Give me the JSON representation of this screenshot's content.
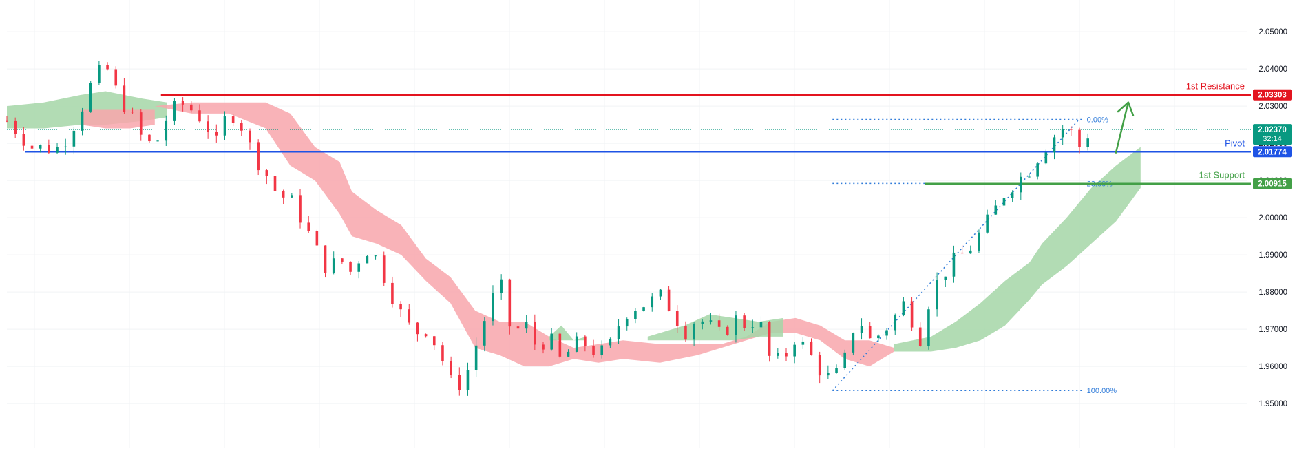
{
  "chart_data": {
    "type": "line",
    "subtype": "candlestick with ichimoku cloud",
    "title": "",
    "xlabel": "",
    "ylabel": "",
    "grid": true,
    "ylim": [
      1.9465,
      2.0515
    ],
    "y_ticks": [
      1.95,
      1.96,
      1.97,
      1.98,
      1.99,
      2.0,
      2.01,
      2.02,
      2.03,
      2.04,
      2.05
    ],
    "y_tick_labels": [
      "1.95000",
      "1.96000",
      "1.97000",
      "1.98000",
      "1.99000",
      "2.00000",
      "2.01000",
      "2.02000",
      "2.03000",
      "2.04000",
      "2.05000"
    ],
    "x_range": [
      0,
      100
    ],
    "colors": {
      "up_candle": "#089981",
      "down_candle": "#f23645",
      "cloud_bullish": "#a5d6a7",
      "cloud_bearish": "#f8a6ab",
      "resistance": "#e3141f",
      "pivot": "#1e53e5",
      "support": "#43a047",
      "fib": "#2f7bd9",
      "arrow": "#43a047",
      "grid": "#f0f3f5"
    },
    "price_series": {
      "name": "",
      "x": [
        0,
        2,
        4,
        5,
        6,
        7,
        8,
        9,
        10,
        11,
        12,
        13,
        14,
        15,
        16,
        17,
        18,
        19,
        20,
        21,
        22,
        23,
        24,
        25,
        26,
        27,
        28,
        29,
        30,
        31,
        32,
        33,
        34,
        35,
        36,
        37,
        38,
        39,
        40,
        41,
        42,
        43,
        44,
        45,
        46,
        47,
        48,
        49,
        50,
        51,
        52,
        53,
        54,
        55,
        56,
        57,
        58,
        59,
        60,
        61,
        62,
        63,
        64,
        65,
        66,
        67,
        68,
        69,
        70,
        71,
        72,
        73,
        74,
        75,
        76,
        77,
        78,
        79,
        80,
        81,
        82,
        83,
        84,
        85,
        86,
        87,
        88
      ],
      "y": [
        2.026,
        2.019,
        2.0185,
        2.022,
        2.029,
        2.037,
        2.041,
        2.033,
        2.028,
        2.021,
        2.019,
        2.027,
        2.031,
        2.029,
        2.026,
        2.02,
        2.029,
        2.025,
        2.017,
        2.012,
        2.006,
        2.005,
        1.999,
        1.992,
        1.986,
        1.989,
        1.985,
        1.992,
        1.989,
        1.981,
        1.974,
        1.969,
        1.97,
        1.965,
        1.956,
        1.955,
        1.965,
        1.975,
        1.983,
        1.968,
        1.972,
        1.965,
        1.968,
        1.961,
        1.966,
        1.966,
        1.963,
        1.966,
        1.974,
        1.976,
        1.977,
        1.979,
        1.975,
        1.969,
        1.973,
        1.971,
        1.968,
        1.973,
        1.971,
        1.973,
        1.961,
        1.962,
        1.968,
        1.964,
        1.959,
        1.956,
        1.962,
        1.974,
        1.967,
        1.969,
        1.973,
        1.978,
        1.966,
        1.98,
        1.985,
        1.989,
        1.991,
        1.996,
        2.001,
        2.007,
        2.01,
        2.013,
        2.018,
        2.022,
        2.025,
        2.019,
        2.0237
      ]
    },
    "cloud_bands": [
      {
        "name": "",
        "x": [
          0,
          3,
          6,
          8,
          11,
          13
        ],
        "upper": [
          2.03,
          2.031,
          2.033,
          2.034,
          2.032,
          2.031
        ],
        "lower": [
          2.024,
          2.024,
          2.025,
          2.025,
          2.026,
          2.027
        ],
        "sentiment": "bullish"
      },
      {
        "name": "",
        "x": [
          6,
          8,
          10,
          12
        ],
        "upper": [
          2.029,
          2.029,
          2.029,
          2.029
        ],
        "lower": [
          2.025,
          2.024,
          2.024,
          2.025
        ],
        "sentiment": "bearish"
      },
      {
        "name": "",
        "x": [
          12,
          15,
          18,
          21,
          23,
          25,
          27,
          28,
          30,
          32,
          34,
          36,
          38,
          40,
          42,
          44,
          46,
          48,
          50,
          53,
          56,
          58,
          60,
          62,
          64,
          66,
          68,
          70,
          72
        ],
        "upper": [
          2.03,
          2.031,
          2.031,
          2.031,
          2.028,
          2.019,
          2.015,
          2.007,
          2.002,
          1.998,
          1.989,
          1.984,
          1.975,
          1.972,
          1.972,
          1.968,
          1.965,
          1.966,
          1.967,
          1.966,
          1.966,
          1.966,
          1.968,
          1.972,
          1.973,
          1.971,
          1.967,
          1.967,
          1.965
        ],
        "lower": [
          2.03,
          2.028,
          2.028,
          2.024,
          2.014,
          2.01,
          2.001,
          1.995,
          1.993,
          1.99,
          1.983,
          1.977,
          1.965,
          1.963,
          1.96,
          1.96,
          1.962,
          1.961,
          1.962,
          1.961,
          1.963,
          1.965,
          1.967,
          1.969,
          1.969,
          1.967,
          1.962,
          1.96,
          1.964
        ],
        "sentiment": "bearish"
      },
      {
        "name": "",
        "x": [
          44,
          45,
          46,
          47
        ],
        "upper": [
          1.968,
          1.971,
          1.967,
          1.968
        ],
        "lower": [
          1.967,
          1.967,
          1.967,
          1.967
        ],
        "sentiment": "bullish"
      },
      {
        "name": "",
        "x": [
          52,
          55,
          57,
          59,
          61,
          63
        ],
        "upper": [
          1.968,
          1.971,
          1.974,
          1.973,
          1.972,
          1.973
        ],
        "lower": [
          1.967,
          1.967,
          1.967,
          1.967,
          1.968,
          1.968
        ],
        "sentiment": "bullish"
      },
      {
        "name": "",
        "x": [
          72,
          75,
          77,
          79,
          81,
          83,
          84,
          86,
          88,
          90,
          92
        ],
        "upper": [
          1.966,
          1.968,
          1.972,
          1.977,
          1.983,
          1.988,
          1.993,
          2.0,
          2.008,
          2.014,
          2.019
        ],
        "lower": [
          1.964,
          1.964,
          1.965,
          1.967,
          1.971,
          1.978,
          1.982,
          1.987,
          1.993,
          1.999,
          2.008
        ],
        "sentiment": "bullish"
      }
    ],
    "levels": [
      {
        "name": "1st Resistance",
        "value": 2.03303,
        "label": "2.03303",
        "color": "#e3141f"
      },
      {
        "name": "Pivot",
        "value": 2.01774,
        "label": "2.01774",
        "color": "#1e53e5"
      },
      {
        "name": "1st Support",
        "value": 2.00915,
        "label": "2.00915",
        "color": "#43a047"
      }
    ],
    "current_price": {
      "value": 2.0237,
      "label": "2.02370",
      "countdown": "32:14",
      "color": "#089981"
    },
    "fib_levels": [
      {
        "label": "0.00%",
        "value": 2.0264
      },
      {
        "label": "23.60%",
        "value": 2.0092
      },
      {
        "label": "100.00%",
        "value": 1.9535
      }
    ],
    "fib_trendline": {
      "from": [
        67,
        1.9535
      ],
      "to": [
        87,
        2.0264
      ]
    },
    "forecast_arrow": {
      "from": [
        90,
        2.0175
      ],
      "to": [
        91,
        2.031
      ],
      "direction": "up"
    }
  }
}
